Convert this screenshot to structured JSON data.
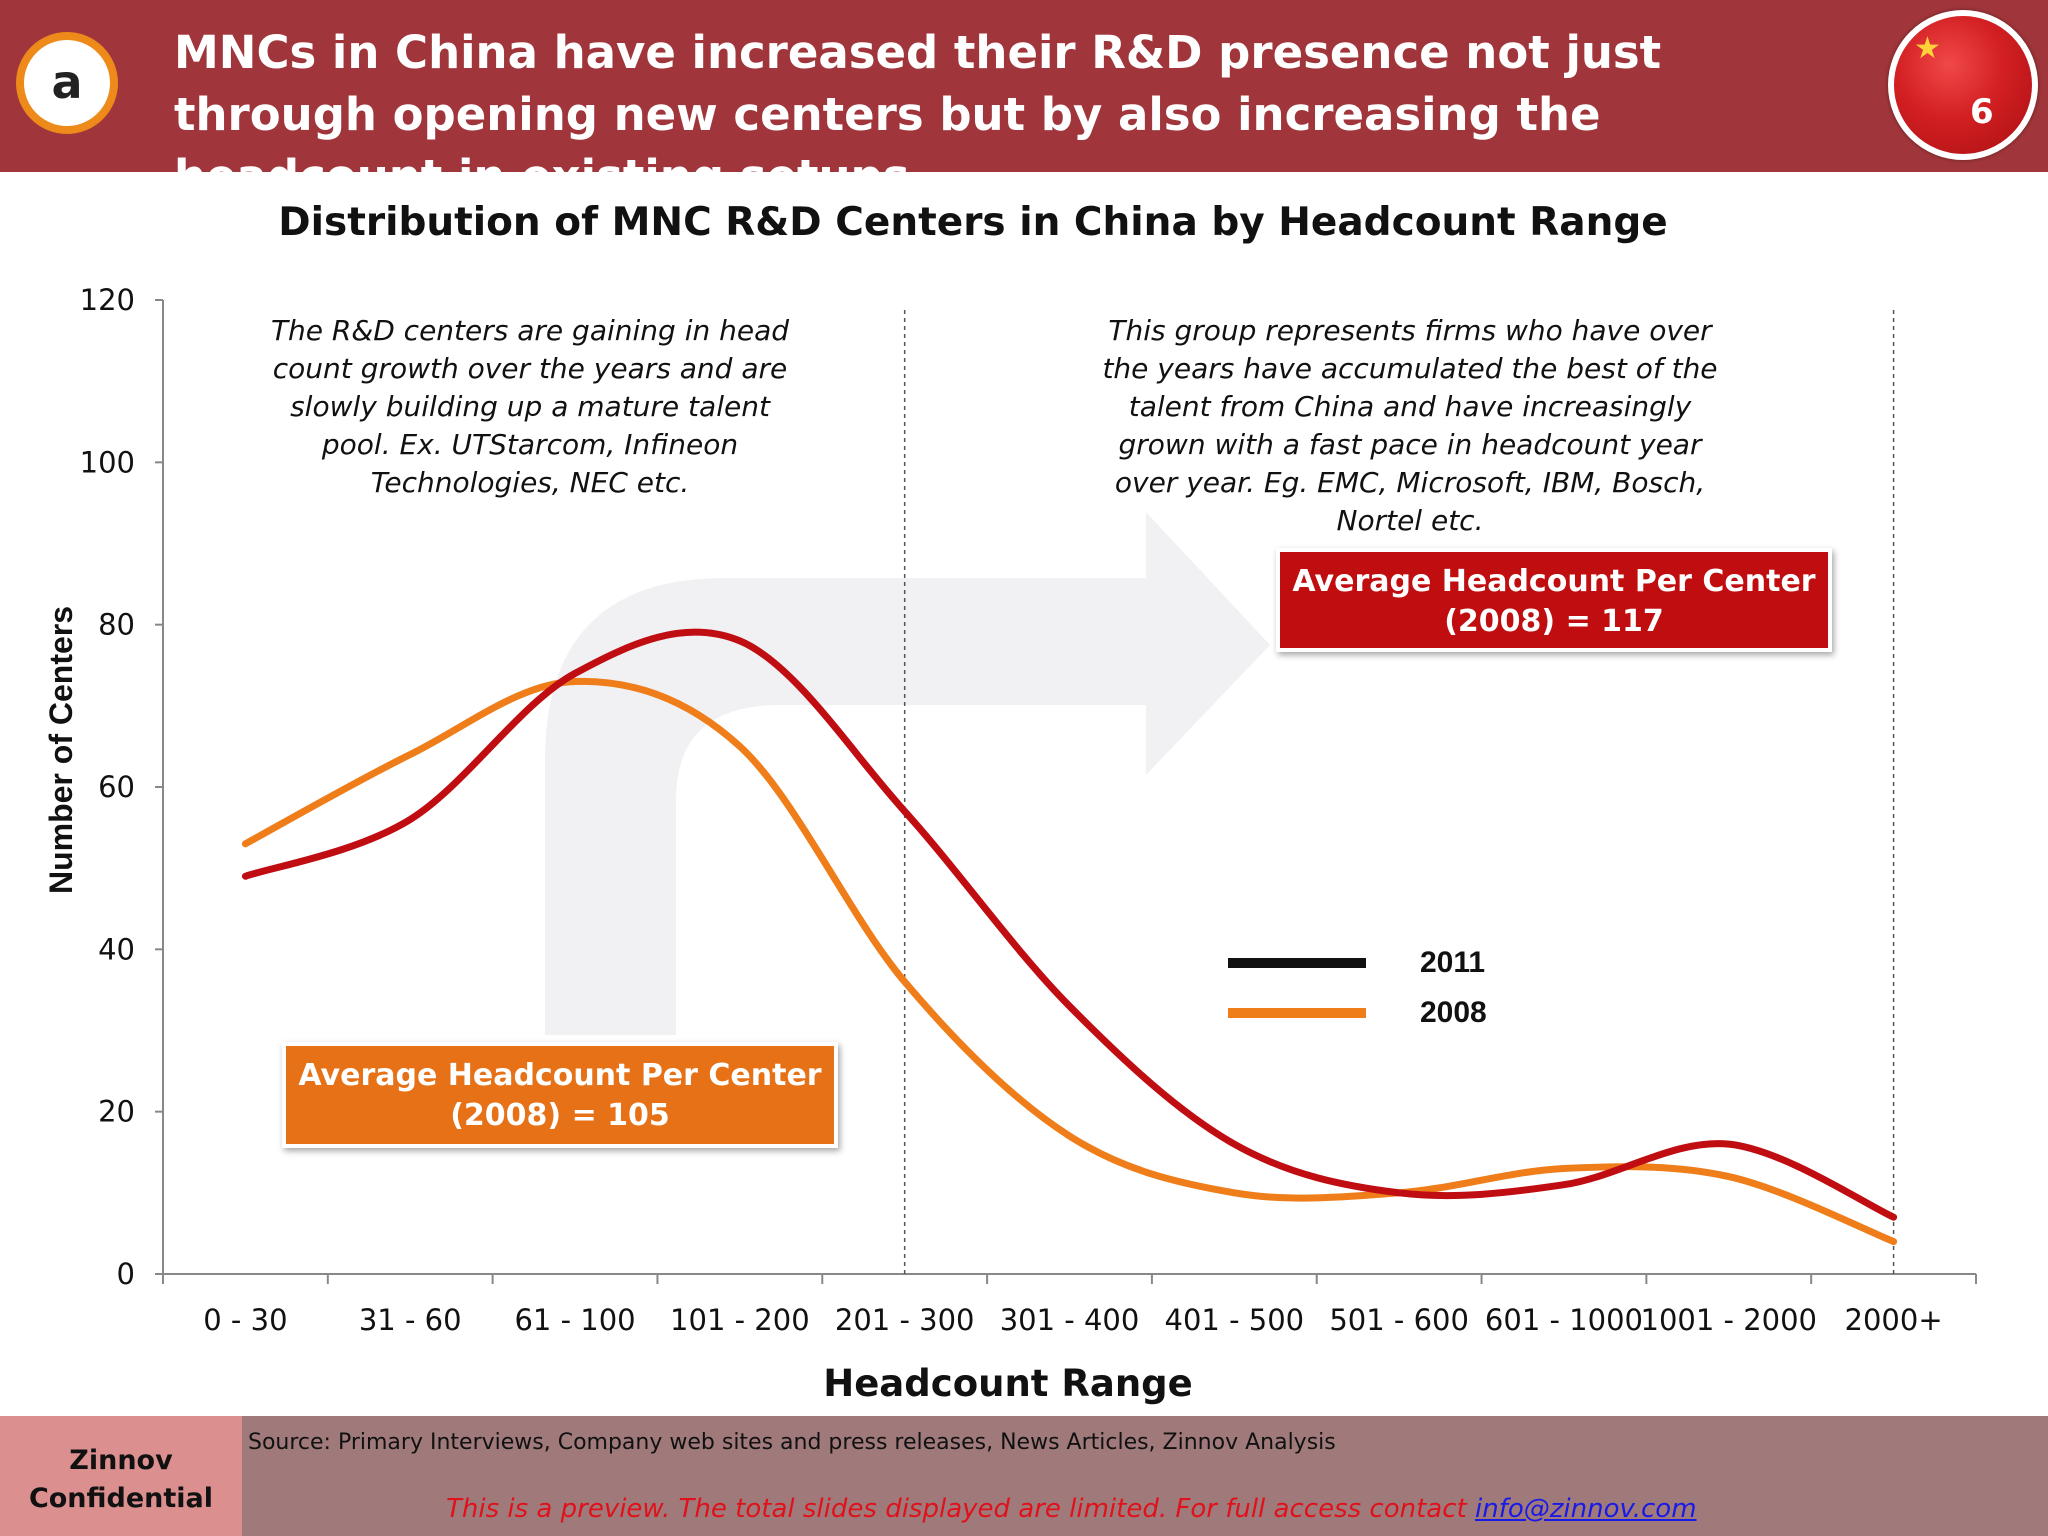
{
  "header": {
    "badge": "a",
    "title": "MNCs in China have increased their R&D presence not just through opening new centers but by also increasing the headcount in existing setups",
    "page_number": "6"
  },
  "chart_title": "Distribution of MNC R&D Centers in China by Headcount Range",
  "annotations": {
    "left_note": "The R&D centers are gaining in head count growth over the years and are slowly building up a mature talent pool. Ex. UTStarcom, Infineon Technologies, NEC etc.",
    "right_note": "This group represents firms who have over the years have accumulated the best of the talent from China and have increasingly grown with a fast pace in headcount year over year. Eg. EMC, Microsoft, IBM, Bosch, Nortel etc.",
    "callout_orange_line1": "Average Headcount Per Center",
    "callout_orange_line2": "(2008) = 105",
    "callout_red_line1": "Average Headcount Per Center",
    "callout_red_line2": "(2008) = 117"
  },
  "colors": {
    "2011": "#c00d12",
    "2008": "#ee7d1a",
    "header": "#a0363b"
  },
  "chart_data": {
    "type": "line",
    "smoothed": true,
    "xlabel": "Headcount Range",
    "ylabel": "Number of Centers",
    "ylim": [
      0,
      120
    ],
    "yticks": [
      0,
      20,
      40,
      60,
      80,
      100,
      120
    ],
    "categories": [
      "0 - 30",
      "31 - 60",
      "61 - 100",
      "101 - 200",
      "201 - 300",
      "301 - 400",
      "401 - 500",
      "501 - 600",
      "601 - 1000",
      "1001 - 2000",
      "2000+"
    ],
    "series": [
      {
        "name": "2011",
        "values": [
          49,
          56,
          74,
          78,
          57,
          33,
          16,
          10,
          11,
          16,
          7
        ]
      },
      {
        "name": "2008",
        "values": [
          53,
          64,
          73,
          65,
          36,
          17,
          10,
          10,
          13,
          12,
          4
        ]
      }
    ],
    "dividers_after": [
      "201 - 300",
      "2000+"
    ],
    "legend": {
      "position": "center-right",
      "labels": [
        "2011",
        "2008"
      ]
    },
    "grid": false
  },
  "footer": {
    "confidential": "Zinnov Confidential",
    "source": "Source: Primary Interviews, Company web sites and press releases, News Articles, Zinnov Analysis",
    "preview_text": "This is a preview. The total slides displayed are limited. For full access contact ",
    "contact_email": "info@zinnov.com"
  }
}
